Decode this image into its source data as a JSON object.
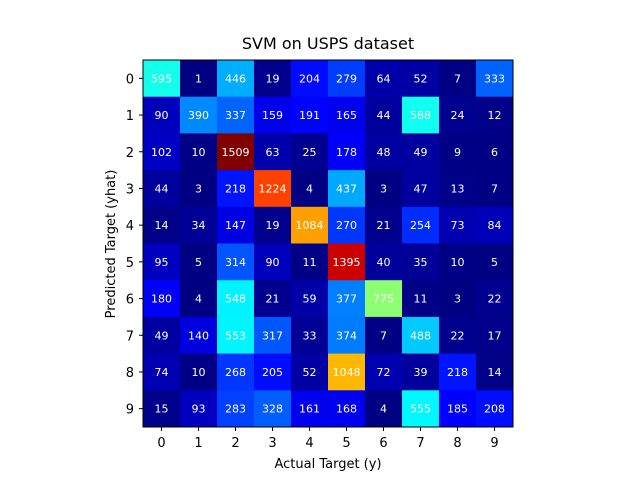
{
  "chart_data": {
    "type": "heatmap",
    "title": "SVM on USPS dataset",
    "xlabel": "Actual Target (y)",
    "ylabel": "Predicted Target (yhat)",
    "x_categories": [
      "0",
      "1",
      "2",
      "3",
      "4",
      "5",
      "6",
      "7",
      "8",
      "9"
    ],
    "y_categories": [
      "0",
      "1",
      "2",
      "3",
      "4",
      "5",
      "6",
      "7",
      "8",
      "9"
    ],
    "colormap": "jet",
    "vmin": 0,
    "vmax": 1509,
    "values": [
      [
        595,
        1,
        446,
        19,
        204,
        279,
        64,
        52,
        7,
        333
      ],
      [
        90,
        390,
        337,
        159,
        191,
        165,
        44,
        588,
        24,
        12
      ],
      [
        102,
        10,
        1509,
        63,
        25,
        178,
        48,
        49,
        9,
        6
      ],
      [
        44,
        3,
        218,
        1224,
        4,
        437,
        3,
        47,
        13,
        7
      ],
      [
        14,
        34,
        147,
        19,
        1084,
        270,
        21,
        254,
        73,
        84
      ],
      [
        95,
        5,
        314,
        90,
        11,
        1395,
        40,
        35,
        10,
        5
      ],
      [
        180,
        4,
        548,
        21,
        59,
        377,
        775,
        11,
        3,
        22
      ],
      [
        49,
        140,
        553,
        317,
        33,
        374,
        7,
        488,
        22,
        17
      ],
      [
        74,
        10,
        268,
        205,
        52,
        1048,
        72,
        39,
        218,
        14
      ],
      [
        15,
        93,
        283,
        328,
        161,
        168,
        4,
        555,
        185,
        208
      ]
    ]
  }
}
